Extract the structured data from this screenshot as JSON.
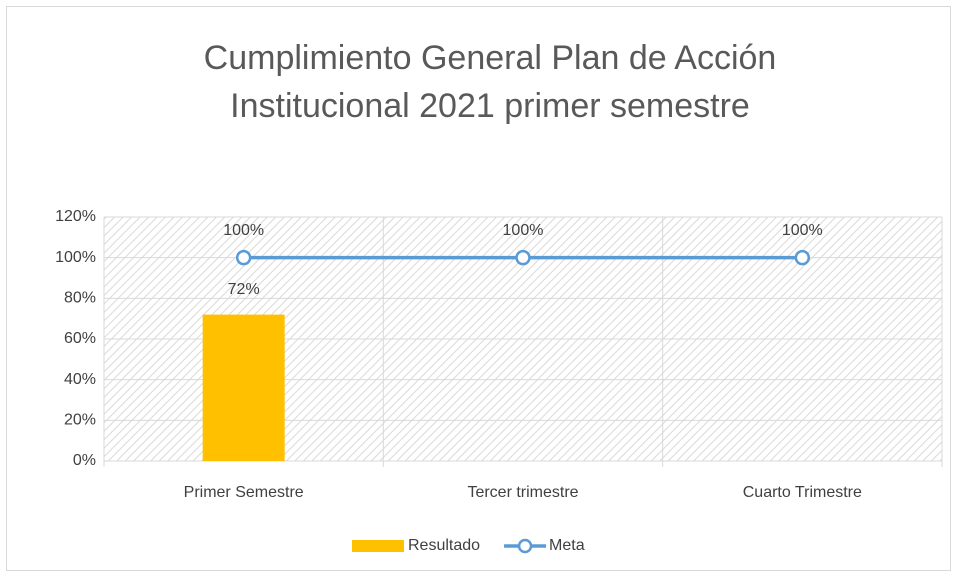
{
  "chart_data": {
    "type": "bar",
    "title": [
      "Cumplimiento General Plan de Acción",
      "Institucional 2021 primer semestre"
    ],
    "categories": [
      "Primer Semestre",
      "Tercer trimestre",
      "Cuarto Trimestre"
    ],
    "series": [
      {
        "name": "Resultado",
        "type": "bar",
        "color": "#ffc000",
        "values": [
          72,
          null,
          null
        ],
        "value_labels": [
          "72%",
          null,
          null
        ]
      },
      {
        "name": "Meta",
        "type": "line",
        "color": "#5b9bd5",
        "values": [
          100,
          100,
          100
        ],
        "value_labels": [
          "100%",
          "100%",
          "100%"
        ]
      }
    ],
    "ylim": [
      0,
      120
    ],
    "yticks": [
      {
        "value": 0,
        "label": "0%"
      },
      {
        "value": 20,
        "label": "20%"
      },
      {
        "value": 40,
        "label": "40%"
      },
      {
        "value": 60,
        "label": "60%"
      },
      {
        "value": 80,
        "label": "80%"
      },
      {
        "value": 100,
        "label": "100%"
      },
      {
        "value": 120,
        "label": "120%"
      }
    ],
    "grid": true,
    "legend": "bottom"
  }
}
